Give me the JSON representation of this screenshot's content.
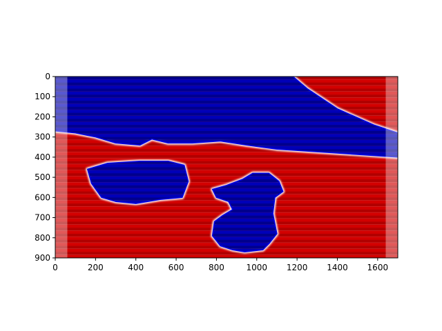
{
  "chart_data": {
    "type": "heatmap",
    "title": "",
    "xlabel": "",
    "ylabel": "",
    "xlim": [
      0,
      1700
    ],
    "ylim": [
      900,
      0
    ],
    "y_axis_inverted": true,
    "grid": false,
    "colormap": "seismic",
    "colors": {
      "blue_dark": "#00006a",
      "blue": "#0000e6",
      "white": "#ffffff",
      "red": "#ff2020",
      "red_dark": "#8c0000"
    },
    "x_ticks": [
      0,
      200,
      400,
      600,
      800,
      1000,
      1200,
      1400,
      1600
    ],
    "x_tick_labels": [
      "0",
      "200",
      "400",
      "600",
      "800",
      "1000",
      "1200",
      "1400",
      "1600"
    ],
    "y_ticks": [
      0,
      100,
      200,
      300,
      400,
      500,
      600,
      700,
      800,
      900
    ],
    "y_tick_labels": [
      "0",
      "100",
      "200",
      "300",
      "400",
      "500",
      "600",
      "700",
      "800",
      "900"
    ],
    "regions": [
      {
        "sign": "negative",
        "description_points_data_units": [
          [
            0,
            0
          ],
          [
            1180,
            0
          ],
          [
            1250,
            60
          ],
          [
            1400,
            160
          ],
          [
            1580,
            240
          ],
          [
            1700,
            280
          ],
          [
            1700,
            400
          ],
          [
            1400,
            380
          ],
          [
            1100,
            360
          ],
          [
            950,
            340
          ],
          [
            820,
            320
          ],
          [
            680,
            330
          ],
          [
            560,
            330
          ],
          [
            480,
            310
          ],
          [
            420,
            340
          ],
          [
            300,
            330
          ],
          [
            200,
            300
          ],
          [
            100,
            280
          ],
          [
            0,
            270
          ]
        ]
      },
      {
        "sign": "negative",
        "description_points_data_units": [
          [
            160,
            460
          ],
          [
            260,
            430
          ],
          [
            420,
            420
          ],
          [
            560,
            420
          ],
          [
            640,
            440
          ],
          [
            660,
            520
          ],
          [
            630,
            600
          ],
          [
            520,
            610
          ],
          [
            400,
            630
          ],
          [
            300,
            620
          ],
          [
            230,
            600
          ],
          [
            180,
            530
          ]
        ]
      },
      {
        "sign": "negative",
        "description_points_data_units": [
          [
            780,
            560
          ],
          [
            850,
            540
          ],
          [
            930,
            510
          ],
          [
            980,
            480
          ],
          [
            1060,
            480
          ],
          [
            1110,
            520
          ],
          [
            1130,
            570
          ],
          [
            1090,
            600
          ],
          [
            1080,
            680
          ],
          [
            1100,
            780
          ],
          [
            1060,
            830
          ],
          [
            1030,
            860
          ],
          [
            940,
            870
          ],
          [
            880,
            860
          ],
          [
            820,
            840
          ],
          [
            780,
            790
          ],
          [
            790,
            720
          ],
          [
            830,
            690
          ],
          [
            880,
            660
          ],
          [
            860,
            620
          ],
          [
            800,
            600
          ]
        ]
      }
    ],
    "outer_fade_columns_x": [
      [
        0,
        60
      ],
      [
        1640,
        1700
      ]
    ],
    "stripe_period": 30
  }
}
